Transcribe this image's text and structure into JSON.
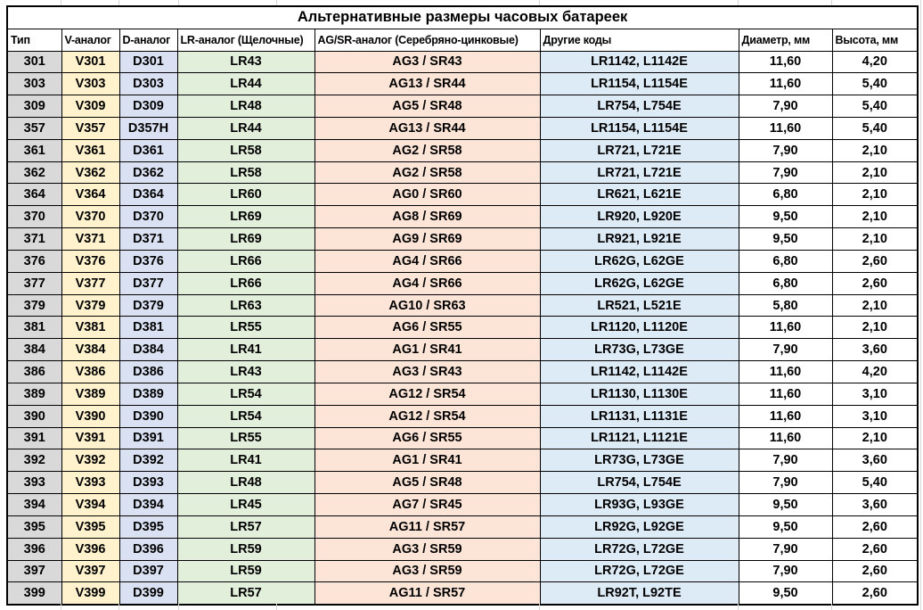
{
  "title": "Альтернативные размеры часовых батареек",
  "columns": [
    {
      "label": "Тип",
      "fill": "#D9D9D9"
    },
    {
      "label": "V-аналог",
      "fill": "#FFF2CC"
    },
    {
      "label": "D-аналог",
      "fill": "#D9E1F2"
    },
    {
      "label": "LR-аналог (Щелочные)",
      "fill": "#E2EFDA"
    },
    {
      "label": "AG/SR-аналог (Серебряно-цинковые)",
      "fill": "#FCE4D6"
    },
    {
      "label": "Другие коды",
      "fill": "#DDEBF7"
    },
    {
      "label": "Диаметр, мм",
      "fill": "#FFFFFF"
    },
    {
      "label": "Высота, мм",
      "fill": "#FFFFFF"
    }
  ],
  "rows": [
    [
      "301",
      "V301",
      "D301",
      "LR43",
      "AG3 / SR43",
      "LR1142, L1142E",
      "11,60",
      "4,20"
    ],
    [
      "303",
      "V303",
      "D303",
      "LR44",
      "AG13 / SR44",
      "LR1154, L1154E",
      "11,60",
      "5,40"
    ],
    [
      "309",
      "V309",
      "D309",
      "LR48",
      "AG5 / SR48",
      "LR754, L754E",
      "7,90",
      "5,40"
    ],
    [
      "357",
      "V357",
      "D357H",
      "LR44",
      "AG13 / SR44",
      "LR1154, L1154E",
      "11,60",
      "5,40"
    ],
    [
      "361",
      "V361",
      "D361",
      "LR58",
      "AG2 / SR58",
      "LR721, L721E",
      "7,90",
      "2,10"
    ],
    [
      "362",
      "V362",
      "D362",
      "LR58",
      "AG2 / SR58",
      "LR721, L721E",
      "7,90",
      "2,10"
    ],
    [
      "364",
      "V364",
      "D364",
      "LR60",
      "AG0 / SR60",
      "LR621, L621E",
      "6,80",
      "2,10"
    ],
    [
      "370",
      "V370",
      "D370",
      "LR69",
      "AG8 / SR69",
      "LR920, L920E",
      "9,50",
      "2,10"
    ],
    [
      "371",
      "V371",
      "D371",
      "LR69",
      "AG9 / SR69",
      "LR921, L921E",
      "9,50",
      "2,10"
    ],
    [
      "376",
      "V376",
      "D376",
      "LR66",
      "AG4 / SR66",
      "LR62G, L62GE",
      "6,80",
      "2,60"
    ],
    [
      "377",
      "V377",
      "D377",
      "LR66",
      "AG4 / SR66",
      "LR62G, L62GE",
      "6,80",
      "2,60"
    ],
    [
      "379",
      "V379",
      "D379",
      "LR63",
      "AG10 / SR63",
      "LR521, L521E",
      "5,80",
      "2,10"
    ],
    [
      "381",
      "V381",
      "D381",
      "LR55",
      "AG6 / SR55",
      "LR1120, L1120E",
      "11,60",
      "2,10"
    ],
    [
      "384",
      "V384",
      "D384",
      "LR41",
      "AG1 / SR41",
      "LR73G, L73GE",
      "7,90",
      "3,60"
    ],
    [
      "386",
      "V386",
      "D386",
      "LR43",
      "AG3 / SR43",
      "LR1142, L1142E",
      "11,60",
      "4,20"
    ],
    [
      "389",
      "V389",
      "D389",
      "LR54",
      "AG12 / SR54",
      "LR1130, L1130E",
      "11,60",
      "3,10"
    ],
    [
      "390",
      "V390",
      "D390",
      "LR54",
      "AG12 / SR54",
      "LR1131, L1131E",
      "11,60",
      "3,10"
    ],
    [
      "391",
      "V391",
      "D391",
      "LR55",
      "AG6 / SR55",
      "LR1121, L1121E",
      "11,60",
      "2,10"
    ],
    [
      "392",
      "V392",
      "D392",
      "LR41",
      "AG1 / SR41",
      "LR73G, L73GE",
      "7,90",
      "3,60"
    ],
    [
      "393",
      "V393",
      "D393",
      "LR48",
      "AG5 / SR48",
      "LR754, L754E",
      "7,90",
      "5,40"
    ],
    [
      "394",
      "V394",
      "D394",
      "LR45",
      "AG7 / SR45",
      "LR93G, L93GE",
      "9,50",
      "3,60"
    ],
    [
      "395",
      "V395",
      "D395",
      "LR57",
      "AG11 / SR57",
      "LR92G, L92GE",
      "9,50",
      "2,60"
    ],
    [
      "396",
      "V396",
      "D396",
      "LR59",
      "AG3 / SR59",
      "LR72G, L72GE",
      "7,90",
      "2,60"
    ],
    [
      "397",
      "V397",
      "D397",
      "LR59",
      "AG3 / SR59",
      "LR72G, L72GE",
      "7,90",
      "2,60"
    ],
    [
      "399",
      "V399",
      "D399",
      "LR57",
      "AG11 / SR57",
      "LR92T, L92TE",
      "9,50",
      "2,60"
    ]
  ],
  "colors": {
    "border": "#000000",
    "gridline": "#D8D8D8",
    "text": "#000000",
    "header_bg": "#FFFFFF"
  }
}
